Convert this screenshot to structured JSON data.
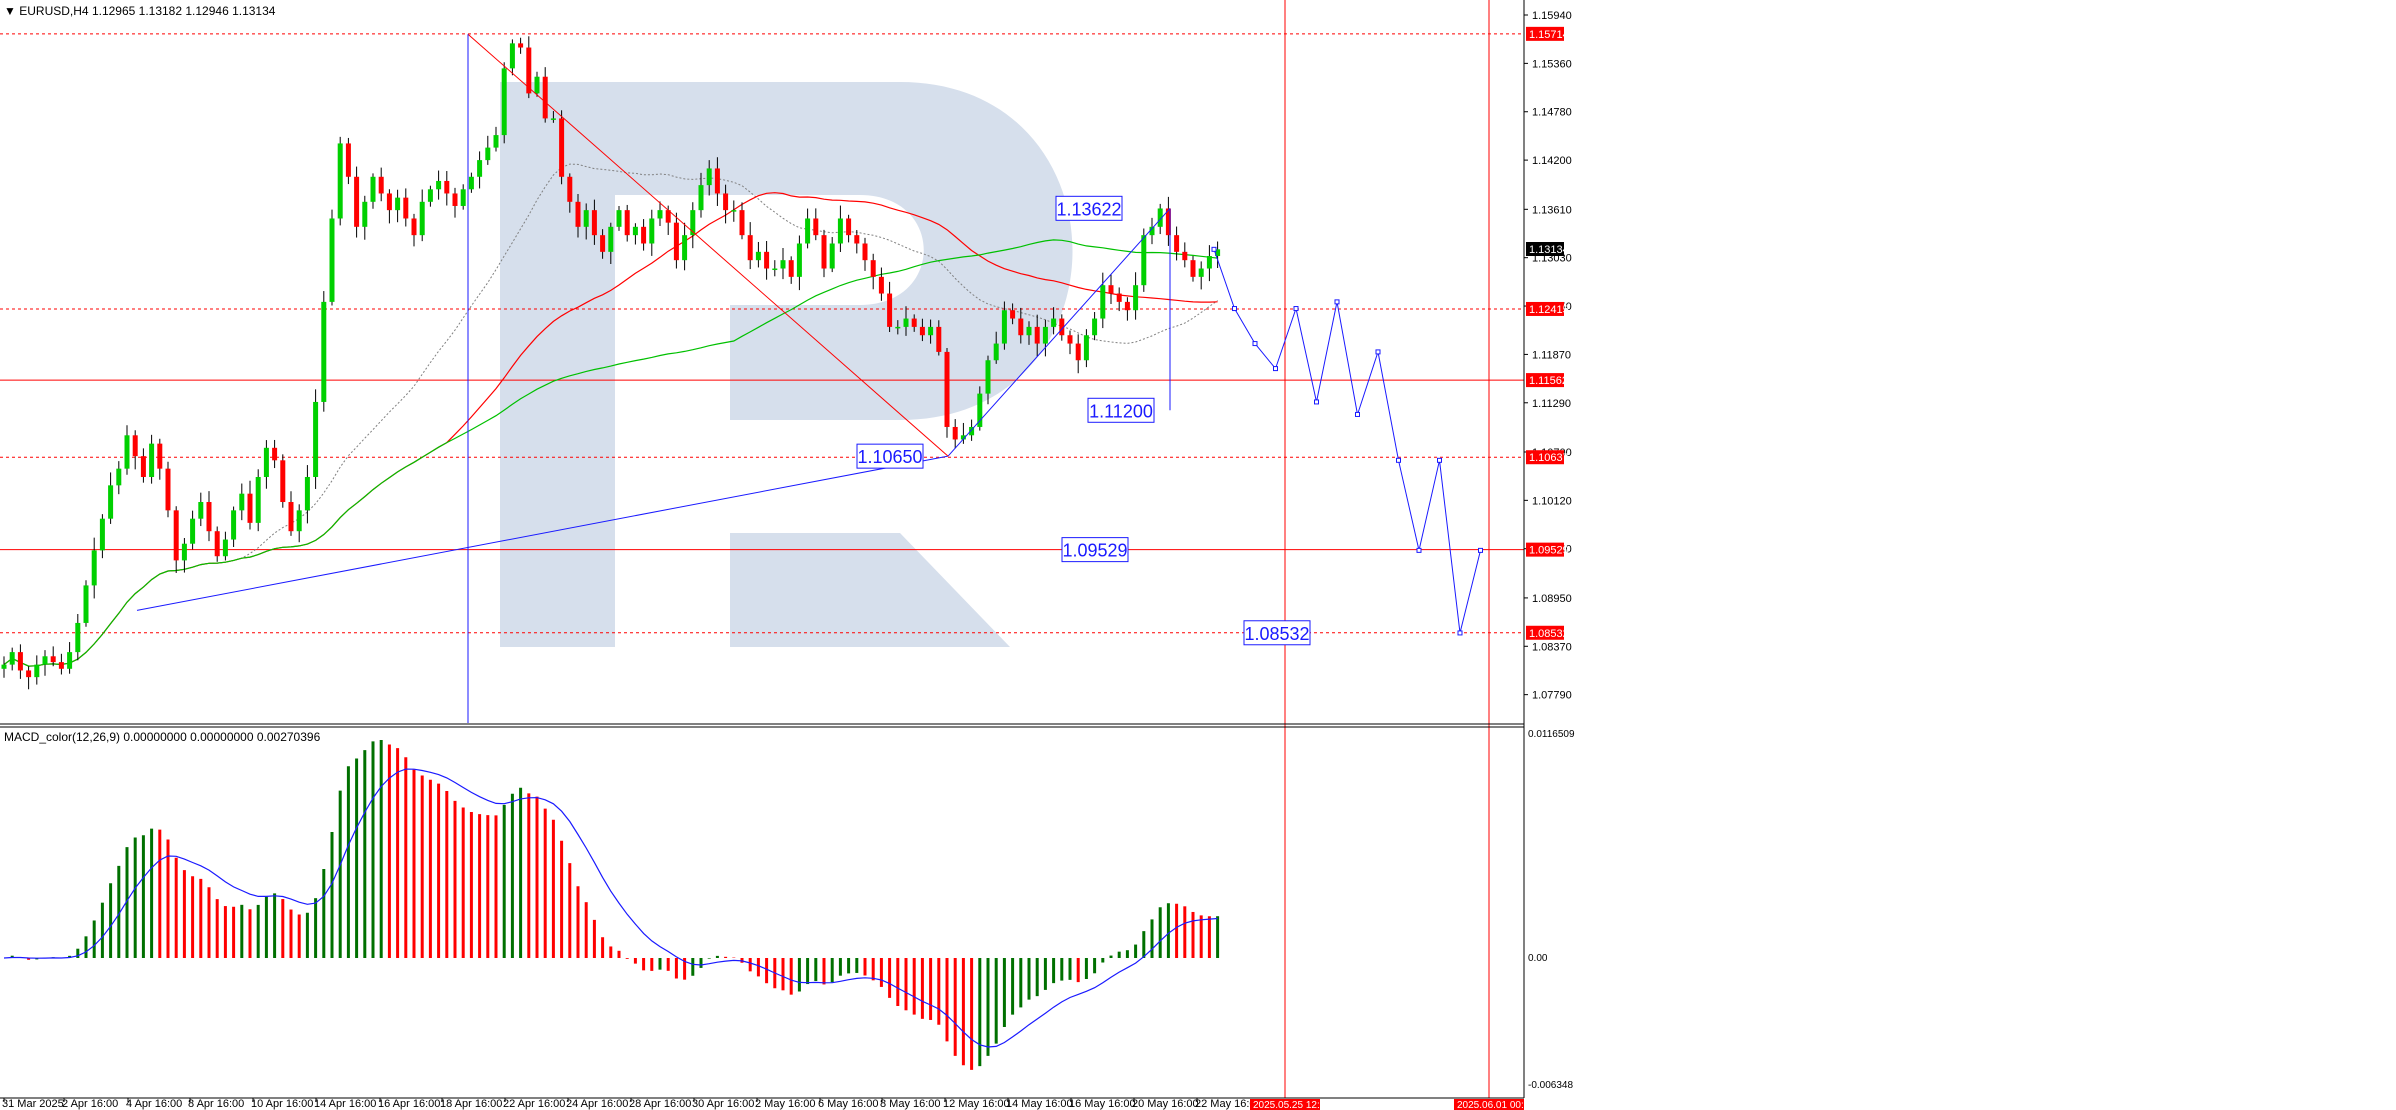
{
  "header": {
    "symbol": "EURUSD,H4",
    "ohlc": "1.12965 1.13182 1.12946 1.13134"
  },
  "indicator": {
    "label": "MACD_color(12,26,9) 0.00000000 0.00000000 0.00270396"
  },
  "colors": {
    "bull": "#00d000",
    "bear": "#ff0000",
    "ma_fast": "#ff0000",
    "ma_slow": "#00c000",
    "ma_dotted": "#808080",
    "forecast": "#1a1aff",
    "level_line": "#ff0000",
    "watermark": "#d6dfec",
    "macd_pos": "#007000",
    "macd_neg": "#ff0000",
    "signal": "#1a1aff"
  },
  "chart_data": {
    "type": "candlestick",
    "symbol": "EURUSD",
    "timeframe": "H4",
    "price_range": [
      1.0745,
      1.1612
    ],
    "y_ticks": [
      "1.15940",
      "1.15360",
      "1.14780",
      "1.14200",
      "1.13610",
      "1.13030",
      "1.12450",
      "1.11870",
      "1.11290",
      "1.10700",
      "1.10120",
      "1.09540",
      "1.08950",
      "1.08370",
      "1.07790"
    ],
    "x_ticks": [
      "31 Mar 2025",
      "2 Apr 16:00",
      "4 Apr 16:00",
      "8 Apr 16:00",
      "10 Apr 16:00",
      "14 Apr 16:00",
      "16 Apr 16:00",
      "18 Apr 16:00",
      "22 Apr 16:00",
      "24 Apr 16:00",
      "28 Apr 16:00",
      "30 Apr 16:00",
      "2 May 16:00",
      "6 May 16:00",
      "8 May 16:00",
      "12 May 16:00",
      "14 May 16:00",
      "16 May 16:00",
      "20 May 16:00",
      "22 May 16:00"
    ],
    "x_markers": [
      "2025.05.25 12:00",
      "2025.06.01 00:00"
    ],
    "current_price": "1.13134",
    "price_levels": [
      {
        "label": "1.15714",
        "value": 1.15714,
        "style": "dashed"
      },
      {
        "label": "1.12415",
        "value": 1.12415,
        "style": "dashed"
      },
      {
        "label": "1.11562",
        "value": 1.11562,
        "style": "solid"
      },
      {
        "label": "1.10637",
        "value": 1.10637,
        "style": "dashed"
      },
      {
        "label": "1.09529",
        "value": 1.09529,
        "style": "solid"
      },
      {
        "label": "1.08532",
        "value": 1.08532,
        "style": "dashed"
      }
    ],
    "annotations": [
      "1.13622",
      "1.11200",
      "1.10650",
      "1.09529",
      "1.08532"
    ],
    "closes": [
      1.0815,
      1.083,
      1.0808,
      1.08,
      1.0815,
      1.0825,
      1.0818,
      1.081,
      1.083,
      1.0865,
      1.091,
      1.0952,
      1.099,
      1.103,
      1.105,
      1.109,
      1.1065,
      1.104,
      1.108,
      1.105,
      1.1,
      1.094,
      1.096,
      1.099,
      1.101,
      1.0975,
      1.0945,
      1.0965,
      1.1,
      1.102,
      1.0985,
      1.104,
      1.1075,
      1.106,
      1.101,
      1.0975,
      1.1,
      1.104,
      1.113,
      1.125,
      1.135,
      1.144,
      1.14,
      1.134,
      1.137,
      1.14,
      1.138,
      1.136,
      1.1375,
      1.135,
      1.133,
      1.137,
      1.1385,
      1.1395,
      1.138,
      1.1365,
      1.1385,
      1.14,
      1.142,
      1.1435,
      1.145,
      1.153,
      1.156,
      1.1555,
      1.15,
      1.152,
      1.147,
      1.147,
      1.14,
      1.137,
      1.134,
      1.136,
      1.133,
      1.131,
      1.134,
      1.136,
      1.133,
      1.134,
      1.132,
      1.135,
      1.136,
      1.1345,
      1.13,
      1.133,
      1.136,
      1.139,
      1.141,
      1.138,
      1.136,
      1.136,
      1.133,
      1.13,
      1.131,
      1.129,
      1.129,
      1.13,
      1.128,
      1.132,
      1.135,
      1.133,
      1.129,
      1.132,
      1.135,
      1.133,
      1.132,
      1.13,
      1.128,
      1.126,
      1.122,
      1.122,
      1.123,
      1.122,
      1.121,
      1.122,
      1.119,
      1.11,
      1.1085,
      1.109,
      1.11,
      1.114,
      1.118,
      1.12,
      1.124,
      1.123,
      1.121,
      1.122,
      1.12,
      1.122,
      1.123,
      1.121,
      1.12,
      1.118,
      1.121,
      1.123,
      1.127,
      1.126,
      1.125,
      1.124,
      1.127,
      1.133,
      1.134,
      1.1362,
      1.133,
      1.131,
      1.13,
      1.128,
      1.129,
      1.1305,
      1.1313
    ],
    "forecast_path": [
      1.1313,
      1.1242,
      1.12,
      1.117,
      1.1242,
      1.113,
      1.125,
      1.1115,
      1.119,
      1.106,
      1.0952,
      1.106,
      1.0853,
      1.0952
    ]
  }
}
